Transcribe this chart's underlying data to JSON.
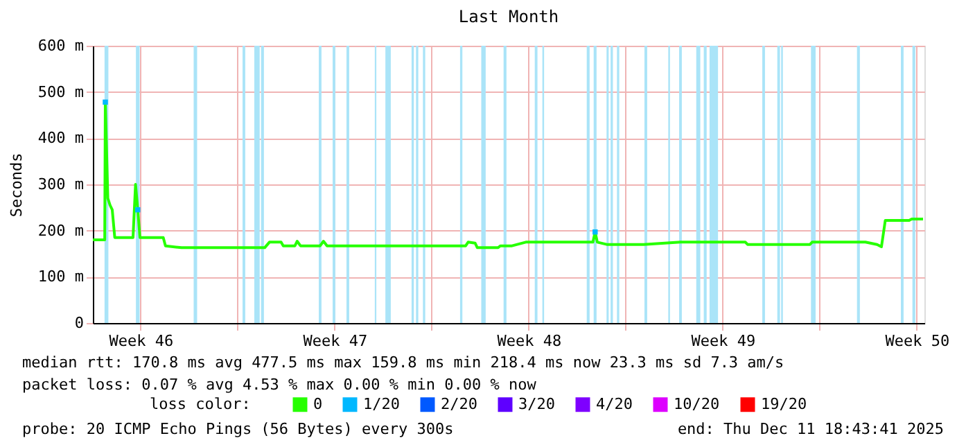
{
  "chart_data": {
    "type": "line",
    "title": "Last Month",
    "ylabel": "Seconds",
    "x": [
      "2025-11-11T18:45",
      "2025-11-12T05:00",
      "2025-11-12T05:30",
      "2025-11-12T07:40",
      "2025-11-12T09:36",
      "2025-11-12T11:30",
      "2025-11-12T13:40",
      "2025-11-13T05:30",
      "2025-11-13T07:40",
      "2025-11-13T09:36",
      "2025-11-13T11:30",
      "2025-11-14T07:40",
      "2025-11-14T09:36",
      "2025-11-14T23:30",
      "2025-11-17T23:30",
      "2025-11-18T03:36",
      "2025-11-18T13:40",
      "2025-11-18T15:36",
      "2025-11-19T01:40",
      "2025-11-19T03:36",
      "2025-11-19T06:30",
      "2025-11-19T23:30",
      "2025-11-20T02:24",
      "2025-11-20T05:30",
      "2025-11-25T05:30",
      "2025-11-25T07:40",
      "2025-11-25T13:40",
      "2025-11-25T15:36",
      "2025-11-26T09:36",
      "2025-11-26T11:30",
      "2025-11-26T21:36",
      "2025-11-27T09:36",
      "2025-11-29T19:40",
      "2025-11-29T21:36",
      "2025-11-29T23:30",
      "2025-11-30T07:40",
      "2025-12-01T15:36",
      "2025-12-02T23:30",
      "2025-12-05T07:40",
      "2025-12-05T09:36",
      "2025-12-07T15:36",
      "2025-12-07T17:30",
      "2025-12-09T15:36",
      "2025-12-10T01:40",
      "2025-12-10T05:30",
      "2025-12-10T08:50",
      "2025-12-11T05:30",
      "2025-12-11T07:40",
      "2025-12-11T17:30"
    ],
    "xlim": [
      "2025-11-11T18:43",
      "2025-12-11T18:43"
    ],
    "xticks": [
      {
        "value": "2025-11-13T12:00",
        "label": "Week 46"
      },
      {
        "value": "2025-11-17",
        "label": null
      },
      {
        "value": "2025-11-20T12:00",
        "label": "Week 47"
      },
      {
        "value": "2025-11-24",
        "label": null
      },
      {
        "value": "2025-11-27T12:00",
        "label": "Week 48"
      },
      {
        "value": "2025-12-01",
        "label": null
      },
      {
        "value": "2025-12-04T12:00",
        "label": "Week 49"
      },
      {
        "value": "2025-12-08",
        "label": null
      },
      {
        "value": "2025-12-11T12:00",
        "label": "Week 50"
      }
    ],
    "ylim": [
      0,
      600
    ],
    "yticks": [
      {
        "value": 0,
        "label": "0"
      },
      {
        "value": 100,
        "label": "100 m"
      },
      {
        "value": 200,
        "label": "200 m"
      },
      {
        "value": 300,
        "label": "300 m"
      },
      {
        "value": 400,
        "label": "400 m"
      },
      {
        "value": 500,
        "label": "500 m"
      },
      {
        "value": 600,
        "label": "600 m"
      }
    ],
    "grid": true,
    "legend": "bottom",
    "legend_title": "loss color:",
    "line_style": "solid",
    "marker": "none",
    "series": [
      {
        "name": "0",
        "color": "#26ff00",
        "values": [
          180,
          180,
          478,
          270,
          255,
          245,
          185,
          185,
          300,
          245,
          185,
          185,
          167,
          163,
          163,
          175,
          175,
          167,
          167,
          177,
          167,
          167,
          177,
          167,
          167,
          175,
          173,
          163,
          163,
          167,
          167,
          175,
          175,
          197,
          175,
          170,
          170,
          175,
          175,
          170,
          170,
          175,
          175,
          170,
          165,
          222,
          222,
          225,
          225
        ]
      },
      {
        "name": "1/20",
        "color": "#00b8ff",
        "type": "scatter",
        "marker": "square",
        "values": [
          null,
          null,
          478,
          null,
          null,
          null,
          null,
          null,
          null,
          245,
          null,
          null,
          null,
          null,
          null,
          null,
          null,
          null,
          null,
          null,
          null,
          null,
          null,
          null,
          null,
          null,
          null,
          null,
          null,
          null,
          null,
          null,
          null,
          197,
          null,
          null,
          null,
          null,
          null,
          null,
          null,
          null,
          null,
          null,
          null,
          null,
          null,
          null,
          null
        ]
      },
      {
        "name": "2/20",
        "color": "#0059ff",
        "values": [
          null,
          null,
          null,
          null,
          null,
          null,
          null,
          null,
          null,
          null,
          null,
          null,
          null,
          null,
          null,
          null,
          null,
          null,
          null,
          null,
          null,
          null,
          null,
          null,
          null,
          null,
          null,
          null,
          null,
          null,
          null,
          null,
          null,
          null,
          null,
          null,
          null,
          null,
          null,
          null,
          null,
          null,
          null,
          null,
          null,
          null,
          null,
          null,
          null
        ]
      },
      {
        "name": "3/20",
        "color": "#5e00ff",
        "values": [
          null,
          null,
          null,
          null,
          null,
          null,
          null,
          null,
          null,
          null,
          null,
          null,
          null,
          null,
          null,
          null,
          null,
          null,
          null,
          null,
          null,
          null,
          null,
          null,
          null,
          null,
          null,
          null,
          null,
          null,
          null,
          null,
          null,
          null,
          null,
          null,
          null,
          null,
          null,
          null,
          null,
          null,
          null,
          null,
          null,
          null,
          null,
          null,
          null
        ]
      },
      {
        "name": "4/20",
        "color": "#7e00ff",
        "values": [
          null,
          null,
          null,
          null,
          null,
          null,
          null,
          null,
          null,
          null,
          null,
          null,
          null,
          null,
          null,
          null,
          null,
          null,
          null,
          null,
          null,
          null,
          null,
          null,
          null,
          null,
          null,
          null,
          null,
          null,
          null,
          null,
          null,
          null,
          null,
          null,
          null,
          null,
          null,
          null,
          null,
          null,
          null,
          null,
          null,
          null,
          null,
          null,
          null
        ]
      },
      {
        "name": "10/20",
        "color": "#dd00ff",
        "values": [
          null,
          null,
          null,
          null,
          null,
          null,
          null,
          null,
          null,
          null,
          null,
          null,
          null,
          null,
          null,
          null,
          null,
          null,
          null,
          null,
          null,
          null,
          null,
          null,
          null,
          null,
          null,
          null,
          null,
          null,
          null,
          null,
          null,
          null,
          null,
          null,
          null,
          null,
          null,
          null,
          null,
          null,
          null,
          null,
          null,
          null,
          null,
          null,
          null
        ]
      },
      {
        "name": "19/20",
        "color": "#ff0000",
        "values": [
          null,
          null,
          null,
          null,
          null,
          null,
          null,
          null,
          null,
          null,
          null,
          null,
          null,
          null,
          null,
          null,
          null,
          null,
          null,
          null,
          null,
          null,
          null,
          null,
          null,
          null,
          null,
          null,
          null,
          null,
          null,
          null,
          null,
          null,
          null,
          null,
          null,
          null,
          null,
          null,
          null,
          null,
          null,
          null,
          null,
          null,
          null,
          null,
          null
        ]
      }
    ],
    "bands": [
      {
        "axis": "x",
        "from": "2025-11-12T04:50",
        "to": "2025-11-12T08:10",
        "color": "#aae4f8"
      },
      {
        "axis": "x",
        "from": "2025-11-13T08:00",
        "to": "2025-11-13T11:10",
        "color": "#aae4f8"
      },
      {
        "axis": "x",
        "from": "2025-11-15T10:00",
        "to": "2025-11-15T13:00",
        "color": "#aae4f8"
      },
      {
        "axis": "x",
        "from": "2025-11-17T04:20",
        "to": "2025-11-17T06:40",
        "color": "#aae4f8"
      },
      {
        "axis": "x",
        "from": "2025-11-17T14:30",
        "to": "2025-11-17T19:10",
        "color": "#aae4f8"
      },
      {
        "axis": "x",
        "from": "2025-11-17T20:20",
        "to": "2025-11-17T22:50",
        "color": "#aae4f8"
      },
      {
        "axis": "x",
        "from": "2025-11-19T22:20",
        "to": "2025-11-20T00:40",
        "color": "#aae4f8"
      },
      {
        "axis": "x",
        "from": "2025-11-20T10:20",
        "to": "2025-11-20T12:40",
        "color": "#aae4f8"
      },
      {
        "axis": "x",
        "from": "2025-11-20T22:20",
        "to": "2025-11-21T00:40",
        "color": "#aae4f8"
      },
      {
        "axis": "x",
        "from": "2025-11-21T22:50",
        "to": "2025-11-22T00:10",
        "color": "#aae4f8"
      },
      {
        "axis": "x",
        "from": "2025-11-22T08:00",
        "to": "2025-11-22T12:40",
        "color": "#aae4f8"
      },
      {
        "axis": "x",
        "from": "2025-11-23T06:40",
        "to": "2025-11-23T08:40",
        "color": "#aae4f8"
      },
      {
        "axis": "x",
        "from": "2025-11-23T10:30",
        "to": "2025-11-23T12:30",
        "color": "#aae4f8"
      },
      {
        "axis": "x",
        "from": "2025-11-23T16:30",
        "to": "2025-11-23T18:30",
        "color": "#aae4f8"
      },
      {
        "axis": "x",
        "from": "2025-11-25T00:40",
        "to": "2025-11-25T02:40",
        "color": "#aae4f8"
      },
      {
        "axis": "x",
        "from": "2025-11-25T19:00",
        "to": "2025-11-25T22:50",
        "color": "#aae4f8"
      },
      {
        "axis": "x",
        "from": "2025-11-26T14:20",
        "to": "2025-11-26T16:50",
        "color": "#aae4f8"
      },
      {
        "axis": "x",
        "from": "2025-11-27T17:20",
        "to": "2025-11-27T19:40",
        "color": "#aae4f8"
      },
      {
        "axis": "x",
        "from": "2025-11-27T23:55",
        "to": "2025-11-28T01:25",
        "color": "#aae4f8"
      },
      {
        "axis": "x",
        "from": "2025-11-29T14:20",
        "to": "2025-11-29T16:50",
        "color": "#aae4f8"
      },
      {
        "axis": "x",
        "from": "2025-11-29T20:20",
        "to": "2025-11-29T22:50",
        "color": "#aae4f8"
      },
      {
        "axis": "x",
        "from": "2025-11-30T07:30",
        "to": "2025-11-30T09:20",
        "color": "#aae4f8"
      },
      {
        "axis": "x",
        "from": "2025-11-30T11:00",
        "to": "2025-11-30T13:00",
        "color": "#aae4f8"
      },
      {
        "axis": "x",
        "from": "2025-11-30T16:30",
        "to": "2025-11-30T18:30",
        "color": "#aae4f8"
      },
      {
        "axis": "x",
        "from": "2025-12-01T16:20",
        "to": "2025-12-01T18:40",
        "color": "#aae4f8"
      },
      {
        "axis": "x",
        "from": "2025-12-02T12:55",
        "to": "2025-12-02T14:25",
        "color": "#aae4f8"
      },
      {
        "axis": "x",
        "from": "2025-12-02T22:20",
        "to": "2025-12-03T00:40",
        "color": "#aae4f8"
      },
      {
        "axis": "x",
        "from": "2025-12-03T13:10",
        "to": "2025-12-03T16:40",
        "color": "#aae4f8"
      },
      {
        "axis": "x",
        "from": "2025-12-03T19:40",
        "to": "2025-12-03T22:10",
        "color": "#aae4f8"
      },
      {
        "axis": "x",
        "from": "2025-12-04T00:40",
        "to": "2025-12-04T08:00",
        "color": "#aae4f8"
      },
      {
        "axis": "x",
        "from": "2025-12-05T22:20",
        "to": "2025-12-06T00:40",
        "color": "#aae4f8"
      },
      {
        "axis": "x",
        "from": "2025-12-06T11:20",
        "to": "2025-12-06T13:40",
        "color": "#aae4f8"
      },
      {
        "axis": "x",
        "from": "2025-12-06T14:40",
        "to": "2025-12-06T16:10",
        "color": "#aae4f8"
      },
      {
        "axis": "x",
        "from": "2025-12-07T16:30",
        "to": "2025-12-07T20:30",
        "color": "#aae4f8"
      },
      {
        "axis": "x",
        "from": "2025-12-09T08:20",
        "to": "2025-12-09T10:50",
        "color": "#aae4f8"
      },
      {
        "axis": "x",
        "from": "2025-12-10T22:20",
        "to": "2025-12-11T00:40",
        "color": "#aae4f8"
      },
      {
        "axis": "x",
        "from": "2025-12-11T08:20",
        "to": "2025-12-11T10:50",
        "color": "#aae4f8"
      }
    ],
    "annotations": [
      "median rtt:  170.8 ms avg  477.5 ms max  159.8 ms min  218.4 ms now  23.3 ms sd  7.3   am/s",
      "packet loss: 0.07 % avg  4.53 % max  0.00 % min  0.00 % now",
      "probe:       20 ICMP Echo Pings (56 Bytes) every 300s",
      "end: Thu Dec 11 18:43:41 2025"
    ]
  }
}
